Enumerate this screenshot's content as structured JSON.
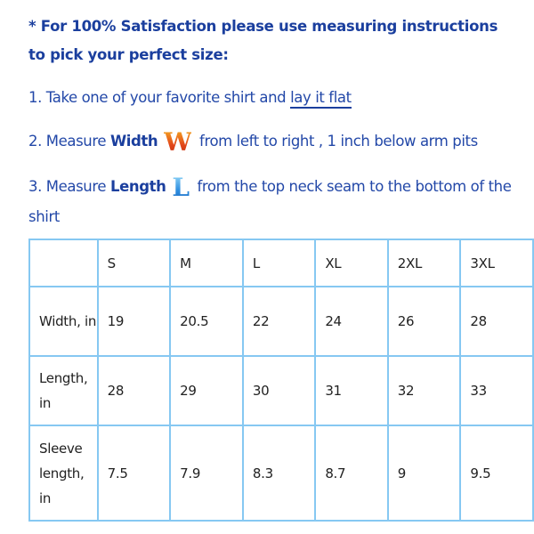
{
  "intro": {
    "line1": "* For 100% Satisfaction please use measuring instructions",
    "line2": "to pick your perfect size:"
  },
  "steps": [
    {
      "prefix": "1. Take one of your favorite shirt and ",
      "link": "lay it flat"
    },
    {
      "prefix": "2. Measure ",
      "bold": "Width",
      "letter": "W",
      "suffix": " from left to right , 1 inch below arm pits"
    },
    {
      "prefix": "3. Measure ",
      "bold": "Length",
      "letter": "L",
      "suffix": " from the top neck seam to the bottom of the shirt"
    }
  ],
  "colors": {
    "heading": "#1b3f9e",
    "text": "#2348a8",
    "table_border": "#86c8f2",
    "w_letter": "#e2461a",
    "l_letter": "#2f8fe0"
  },
  "icons": {
    "width_letter": "orange-w-letter-image",
    "length_letter": "blue-l-letter-image"
  },
  "size_table": {
    "headers": [
      "",
      "S",
      "M",
      "L",
      "XL",
      "2XL",
      "3XL"
    ],
    "rows": [
      {
        "label": "Width, in",
        "values": [
          "19",
          "20.5",
          "22",
          "24",
          "26",
          "28"
        ]
      },
      {
        "label": "Length, in",
        "values": [
          "28",
          "29",
          "30",
          "31",
          "32",
          "33"
        ]
      },
      {
        "label": "Sleeve length, in",
        "values": [
          "7.5",
          "7.9",
          "8.3",
          "8.7",
          "9",
          "9.5"
        ]
      }
    ]
  }
}
